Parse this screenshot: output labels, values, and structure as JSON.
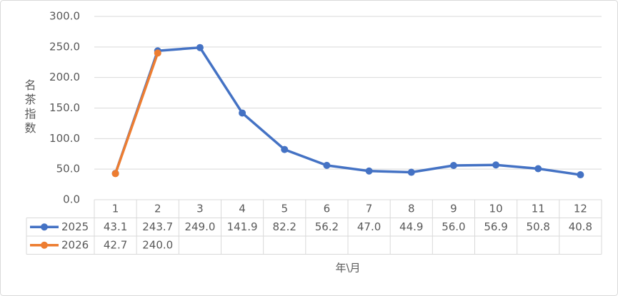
{
  "chart_data": {
    "type": "line",
    "y_label": "名茶指数",
    "x_label": "年\\月",
    "categories": [
      "1",
      "2",
      "3",
      "4",
      "5",
      "6",
      "7",
      "8",
      "9",
      "10",
      "11",
      "12"
    ],
    "series": [
      {
        "name": "2025",
        "color": "#4472c4",
        "values": [
          43.1,
          243.7,
          249.0,
          141.9,
          82.2,
          56.2,
          47.0,
          44.9,
          56.0,
          56.9,
          50.8,
          40.8
        ],
        "value_labels": [
          "43.1",
          "243.7",
          "249.0",
          "141.9",
          "82.2",
          "56.2",
          "47.0",
          "44.9",
          "56.0",
          "56.9",
          "50.8",
          "40.8"
        ]
      },
      {
        "name": "2026",
        "color": "#ed7d31",
        "values": [
          42.7,
          240.0,
          null,
          null,
          null,
          null,
          null,
          null,
          null,
          null,
          null,
          null
        ],
        "value_labels": [
          "42.7",
          "240.0",
          null,
          null,
          null,
          null,
          null,
          null,
          null,
          null,
          null,
          null
        ]
      }
    ],
    "ylim": [
      0,
      300
    ],
    "yticks": [
      {
        "value": 0,
        "label": "0.0"
      },
      {
        "value": 50,
        "label": "50.0"
      },
      {
        "value": 100,
        "label": "100.0"
      },
      {
        "value": 150,
        "label": "150.0"
      },
      {
        "value": 200,
        "label": "200.0"
      },
      {
        "value": 250,
        "label": "250.0"
      },
      {
        "value": 300,
        "label": "300.0"
      }
    ],
    "grid": true,
    "data_table": true
  }
}
